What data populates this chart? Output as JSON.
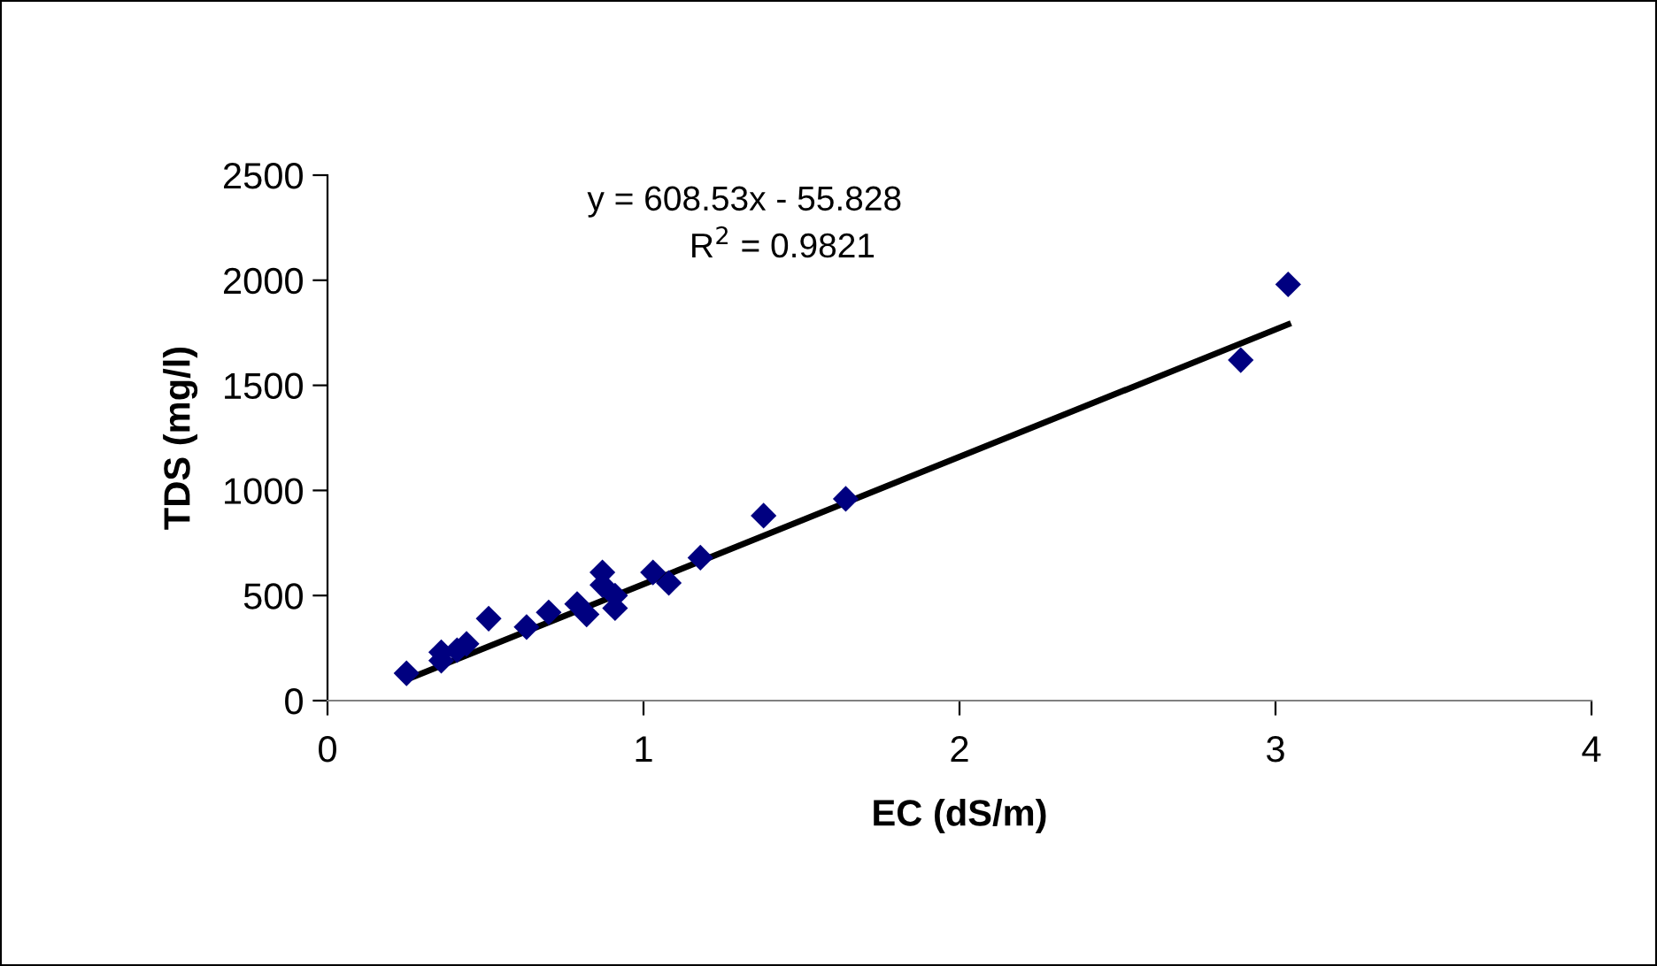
{
  "chart_data": {
    "type": "scatter",
    "xlabel": "EC (dS/m)",
    "ylabel": "TDS (mg/l)",
    "annotations": [
      "y = 608.53x - 55.828",
      "R$^{2}$ = 0.9821"
    ],
    "series": [
      {
        "color": "#000080",
        "marker": "diamond",
        "x": [
          0.25,
          0.36,
          0.36,
          0.41,
          0.44,
          0.51,
          0.63,
          0.7,
          0.79,
          0.82,
          0.87,
          0.87,
          0.91,
          0.91,
          1.03,
          1.08,
          1.18,
          1.38,
          1.64,
          2.89,
          3.04
        ],
        "values": [
          130,
          230,
          190,
          240,
          270,
          390,
          350,
          420,
          460,
          410,
          610,
          550,
          440,
          500,
          610,
          560,
          680,
          880,
          960,
          1620,
          1980
        ]
      },
      {
        "type": "line",
        "color": "#000000",
        "marker": "none",
        "x": [
          0.25,
          3.04
        ],
        "values": [
          100,
          1790
        ]
      }
    ],
    "xlim": [
      0,
      4
    ],
    "xticks": [
      0,
      1,
      2,
      3,
      4
    ],
    "ylim": [
      0,
      2500
    ],
    "yticks": [
      0,
      500,
      1000,
      1500,
      2000,
      2500
    ],
    "grid": false,
    "legend": false
  }
}
